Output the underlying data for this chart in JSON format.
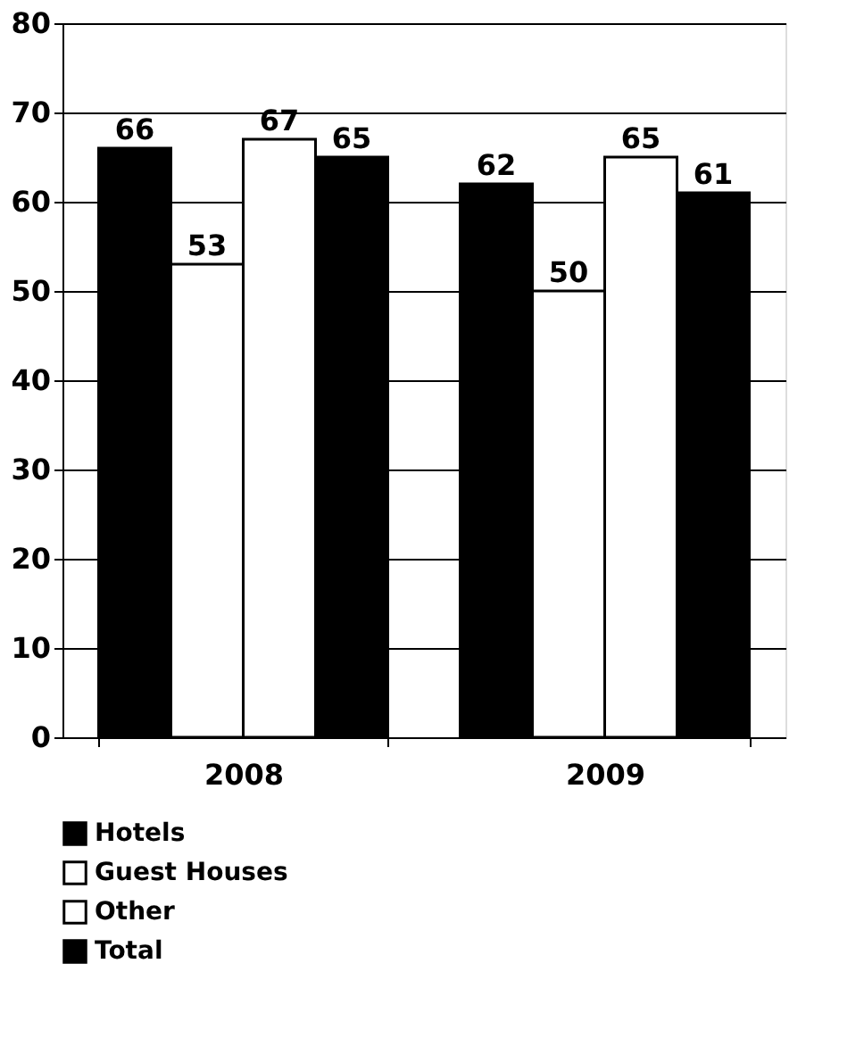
{
  "chart_data": {
    "type": "bar",
    "categories": [
      "2008",
      "2009"
    ],
    "series": [
      {
        "name": "Hotels",
        "color": "#000000",
        "values": [
          66,
          62
        ]
      },
      {
        "name": "Guest Houses",
        "color": "#ffffff",
        "values": [
          53,
          50
        ]
      },
      {
        "name": "Other",
        "color": "#ffffff",
        "values": [
          67,
          65
        ]
      },
      {
        "name": "Total",
        "color": "#000000",
        "values": [
          65,
          61
        ]
      }
    ],
    "ylim": [
      0,
      80
    ],
    "yticks": [
      0,
      10,
      20,
      30,
      40,
      50,
      60,
      70,
      80
    ],
    "grid": "y",
    "legend": "bottom",
    "data_labels": true
  }
}
